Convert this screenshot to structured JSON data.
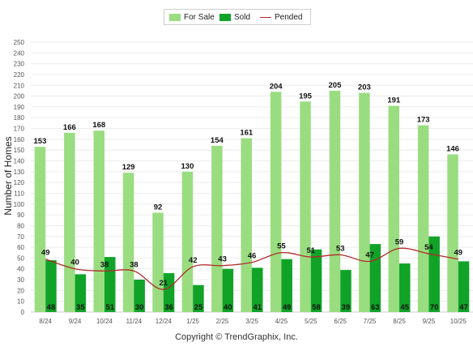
{
  "chart_data": {
    "type": "bar",
    "ylabel": "Number of Homes",
    "ylim": [
      0,
      250
    ],
    "ytick_step": 10,
    "categories": [
      "8/24",
      "9/24",
      "10/24",
      "11/24",
      "12/24",
      "1/25",
      "2/25",
      "3/25",
      "4/25",
      "5/25",
      "6/25",
      "7/25",
      "8/25",
      "9/25",
      "10/25"
    ],
    "series": [
      {
        "name": "For Sale",
        "kind": "bar",
        "color": "#99dd80",
        "values": [
          153,
          166,
          168,
          129,
          92,
          130,
          154,
          161,
          204,
          195,
          205,
          203,
          191,
          173,
          146
        ]
      },
      {
        "name": "Sold",
        "kind": "bar",
        "color": "#10a328",
        "values": [
          48,
          35,
          51,
          30,
          36,
          25,
          40,
          41,
          49,
          58,
          39,
          63,
          45,
          70,
          47
        ]
      },
      {
        "name": "Pended",
        "kind": "line",
        "color": "#b22a2a",
        "values": [
          49,
          40,
          38,
          38,
          21,
          42,
          43,
          46,
          55,
          51,
          53,
          47,
          59,
          54,
          49
        ]
      }
    ],
    "grid": true,
    "legend": "top-center"
  },
  "footer": {
    "copyright": "Copyright © TrendGraphix, Inc."
  }
}
